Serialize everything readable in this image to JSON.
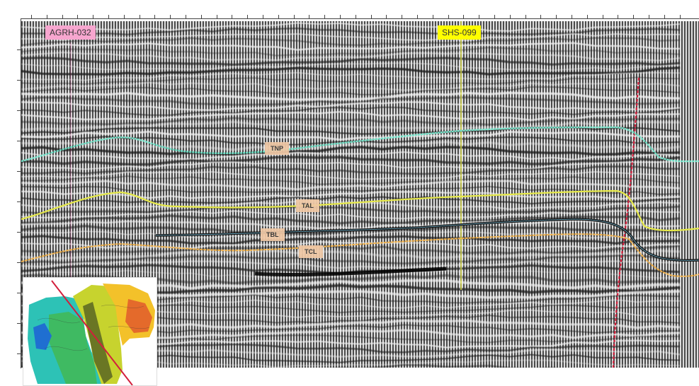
{
  "section": {
    "wells": [
      {
        "id": "well-agrh",
        "label": "AGRH-032",
        "color": "#f7a6cf"
      },
      {
        "id": "well-shs",
        "label": "SHS-099",
        "color": "#ffff00"
      }
    ],
    "horizons": [
      {
        "id": "tnp",
        "label": "TNP",
        "color": "#6fe3c8"
      },
      {
        "id": "tal",
        "label": "TAL",
        "color": "#e6e94a"
      },
      {
        "id": "tbl",
        "label": "TBL",
        "color": "#1a1a1a"
      },
      {
        "id": "tcl",
        "label": "TCL",
        "color": "#f2b24a"
      }
    ],
    "fault_color": "#d21f3c",
    "well_line_color": "#e6e94a"
  },
  "colors": {
    "trace_dark": "#111111",
    "trace_light": "#f0f0f0",
    "background": "#ffffff"
  }
}
